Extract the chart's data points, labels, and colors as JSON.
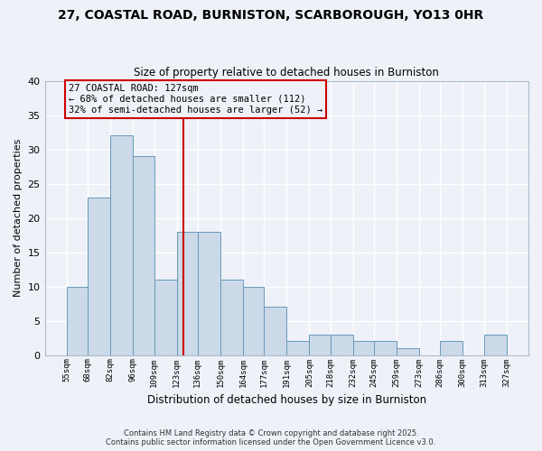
{
  "title_line1": "27, COASTAL ROAD, BURNISTON, SCARBOROUGH, YO13 0HR",
  "title_line2": "Size of property relative to detached houses in Burniston",
  "xlabel": "Distribution of detached houses by size in Burniston",
  "ylabel": "Number of detached properties",
  "bin_labels": [
    "55sqm",
    "68sqm",
    "82sqm",
    "96sqm",
    "109sqm",
    "123sqm",
    "136sqm",
    "150sqm",
    "164sqm",
    "177sqm",
    "191sqm",
    "205sqm",
    "218sqm",
    "232sqm",
    "245sqm",
    "259sqm",
    "273sqm",
    "286sqm",
    "300sqm",
    "313sqm",
    "327sqm"
  ],
  "bin_edges": [
    55,
    68,
    82,
    96,
    109,
    123,
    136,
    150,
    164,
    177,
    191,
    205,
    218,
    232,
    245,
    259,
    273,
    286,
    300,
    313,
    327
  ],
  "bar_heights": [
    10,
    23,
    32,
    29,
    11,
    18,
    18,
    11,
    10,
    7,
    2,
    3,
    3,
    2,
    2,
    1,
    0,
    2,
    0,
    3
  ],
  "bar_color": "#ccd9e8",
  "bar_edgecolor": "#6699bb",
  "ref_line_x": 127,
  "ref_line_color": "#cc0000",
  "annotation_text": "27 COASTAL ROAD: 127sqm\n← 68% of detached houses are smaller (112)\n32% of semi-detached houses are larger (52) →",
  "annotation_box_color": "#cc0000",
  "ylim": [
    0,
    40
  ],
  "yticks": [
    0,
    5,
    10,
    15,
    20,
    25,
    30,
    35,
    40
  ],
  "footer_line1": "Contains HM Land Registry data © Crown copyright and database right 2025.",
  "footer_line2": "Contains public sector information licensed under the Open Government Licence v3.0.",
  "bg_color": "#eef2f8",
  "grid_color": "#ffffff"
}
